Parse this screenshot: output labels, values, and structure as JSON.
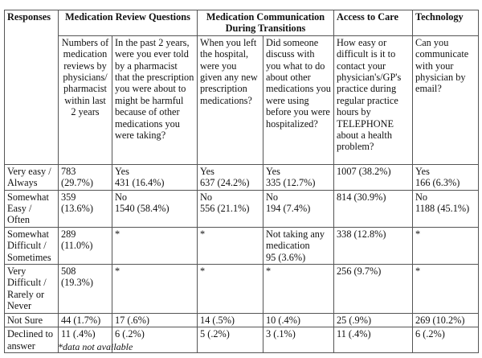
{
  "table": {
    "groups": {
      "responses": "Responses",
      "medication_review": "Medication Review Questions",
      "med_comm": "Medication Communication During Transitions",
      "access": "Access to Care",
      "technology": "Technology"
    },
    "questions": [
      "Numbers of medication reviews by physicians/ pharmacist within last 2 years",
      "In the past 2 years, were you ever told by a pharmacist that the prescription you were about to might be harmful because of other medications you were taking?",
      "When you left the hospital, were you given any new prescription medications?",
      "Did someone discuss with you what to do about other medications you were using before you were hospitalized?",
      "How easy or difficult is it to contact your physician's/GP's practice during regular practice hours by TELEPHONE about a health problem?",
      "Can you communicate with your physician by email?"
    ],
    "rows": [
      {
        "label": "Very easy / Always",
        "cells": [
          "783\n(29.7%)",
          "Yes\n431 (16.4%)",
          "Yes\n637 (24.2%)",
          "Yes\n335 (12.7%)",
          "1007 (38.2%)",
          "Yes\n166 (6.3%)"
        ]
      },
      {
        "label": "Somewhat Easy / Often",
        "cells": [
          "359\n(13.6%)",
          "No\n1540 (58.4%)",
          "No\n556 (21.1%)",
          "No\n194 (7.4%)",
          "814 (30.9%)",
          "No\n1188 (45.1%)"
        ]
      },
      {
        "label": "Somewhat Difficult / Sometimes",
        "cells": [
          "289\n(11.0%)",
          "*",
          "*",
          "Not taking any medication\n95 (3.6%)",
          "338 (12.8%)",
          "*"
        ]
      },
      {
        "label": "Very Difficult / Rarely or Never",
        "cells": [
          "508\n(19.3%)",
          "*",
          "*",
          "*",
          "256 (9.7%)",
          "*"
        ]
      },
      {
        "label": "Not Sure",
        "cells": [
          "44 (1.7%)",
          "17 (.6%)",
          "14 (.5%)",
          "10 (.4%)",
          "25 (.9%)",
          "269 (10.2%)"
        ]
      },
      {
        "label": "Declined to answer",
        "cells": [
          "11 (.4%)",
          "6 (.2%)",
          "5 (.2%)",
          "3 (.1%)",
          "11 (.4%)",
          "6 (.2%)"
        ]
      }
    ]
  },
  "footnote": "*data not available"
}
